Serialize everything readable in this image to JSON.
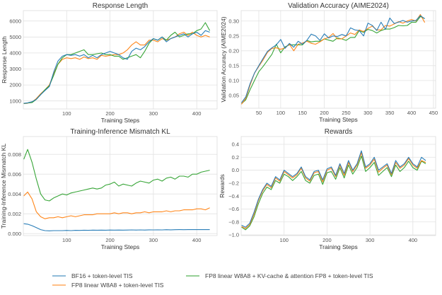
{
  "colors": {
    "bf16": "#1f77b4",
    "fp8": "#ff7f0e",
    "fp8kv": "#2ca02c"
  },
  "legend": [
    {
      "label": "BF16 + token-level TIS",
      "color": "#1f77b4"
    },
    {
      "label": "FP8 linear W8A8 + token-level TIS",
      "color": "#ff7f0e"
    },
    {
      "label": "FP8 linear W8A8 + KV-cache & attention FP8 + token-level TIS",
      "color": "#2ca02c"
    }
  ],
  "chart_data": [
    {
      "type": "line",
      "title": "Response Length",
      "xlabel": "Training Steps",
      "ylabel": "Response Length",
      "xlim": [
        0,
        447
      ],
      "ylim": [
        500,
        6650
      ],
      "grid": true,
      "xticks": [
        100,
        200,
        300,
        400
      ],
      "xticklabels": [
        "100",
        "200",
        "300",
        "400"
      ],
      "yticks": [
        1000,
        2000,
        3000,
        4000,
        5000,
        6000
      ],
      "yticklabels": [
        "1000",
        "2000",
        "3000",
        "4000",
        "5000",
        "6000"
      ],
      "x": [
        1,
        10,
        20,
        30,
        40,
        50,
        60,
        70,
        80,
        90,
        100,
        110,
        120,
        130,
        140,
        150,
        160,
        170,
        180,
        190,
        200,
        210,
        220,
        230,
        240,
        250,
        260,
        270,
        280,
        290,
        300,
        310,
        320,
        330,
        340,
        350,
        360,
        370,
        380,
        390,
        400,
        410,
        420,
        430
      ],
      "series": [
        {
          "name": "FP8 linear W8A8 + token-level TIS",
          "values": [
            830,
            860,
            930,
            1150,
            1450,
            1700,
            2000,
            2700,
            3300,
            3600,
            3700,
            3650,
            3700,
            3600,
            3750,
            3650,
            3700,
            3600,
            3850,
            3800,
            3850,
            3900,
            3900,
            4000,
            4200,
            4500,
            4700,
            4500,
            4500,
            4800,
            4800,
            4700,
            4900,
            4800,
            4900,
            5000,
            5200,
            5300,
            5100,
            5300,
            5100,
            5000,
            5100,
            5000
          ]
        },
        {
          "name": "FP8 linear W8A8 + KV-cache & attention FP8 + token-level TIS",
          "values": [
            840,
            870,
            900,
            1100,
            1400,
            1700,
            1950,
            2600,
            3300,
            3700,
            3900,
            3900,
            4000,
            4100,
            4200,
            3900,
            3900,
            3950,
            4000,
            3900,
            3900,
            3800,
            3800,
            3600,
            3700,
            3800,
            3900,
            3700,
            4100,
            4600,
            4900,
            4800,
            5000,
            4800,
            5100,
            5300,
            5000,
            5100,
            5200,
            5200,
            5400,
            5500,
            5900,
            5400
          ]
        },
        {
          "name": "BF16 + token-level TIS",
          "values": [
            850,
            880,
            950,
            1100,
            1400,
            1650,
            1900,
            2800,
            3500,
            3800,
            3900,
            3850,
            3900,
            3800,
            3900,
            3700,
            3850,
            3700,
            3900,
            4000,
            4100,
            4000,
            3900,
            3700,
            3600,
            4100,
            4300,
            4200,
            4400,
            4700,
            4900,
            4800,
            5000,
            4700,
            4900,
            5000,
            5100,
            5200,
            5000,
            5200,
            5300,
            5100,
            5400,
            5300
          ]
        }
      ]
    },
    {
      "type": "line",
      "title": "Validation Accuracy (AIME2024)",
      "xlabel": "Training Steps",
      "ylabel": "Validation Accuracy (AIME2024)",
      "xlim": [
        9.5,
        455
      ],
      "ylim": [
        0.007,
        0.335
      ],
      "grid": true,
      "xticks": [
        50,
        100,
        150,
        200,
        250,
        300,
        350,
        400,
        450
      ],
      "xticklabels": [
        "50",
        "100",
        "150",
        "200",
        "250",
        "300",
        "350",
        "400",
        "450"
      ],
      "yticks": [
        0.05,
        0.1,
        0.15,
        0.2,
        0.25,
        0.3
      ],
      "yticklabels": [
        "0.05",
        "0.10",
        "0.15",
        "0.20",
        "0.25",
        "0.30"
      ],
      "x": [
        10,
        20,
        30,
        40,
        50,
        60,
        70,
        80,
        90,
        100,
        110,
        120,
        130,
        140,
        150,
        160,
        170,
        180,
        190,
        200,
        210,
        220,
        230,
        240,
        250,
        260,
        270,
        280,
        290,
        300,
        310,
        320,
        330,
        340,
        350,
        360,
        370,
        380,
        390,
        400,
        410,
        420,
        430
      ],
      "series": [
        {
          "name": "FP8 linear W8A8 + KV-cache & attention FP8 + token-level TIS",
          "values": [
            0.022,
            0.035,
            0.07,
            0.1,
            0.13,
            0.148,
            0.168,
            0.188,
            0.222,
            0.193,
            0.213,
            0.22,
            0.22,
            0.22,
            0.22,
            0.235,
            0.23,
            0.232,
            0.232,
            0.24,
            0.236,
            0.232,
            0.243,
            0.24,
            0.235,
            0.245,
            0.245,
            0.268,
            0.262,
            0.272,
            0.268,
            0.26,
            0.268,
            0.273,
            0.273,
            0.278,
            0.285,
            0.284,
            0.285,
            0.296,
            0.296,
            0.315,
            0.308
          ]
        },
        {
          "name": "FP8 linear W8A8 + token-level TIS",
          "values": [
            0.02,
            0.04,
            0.085,
            0.125,
            0.148,
            0.17,
            0.195,
            0.208,
            0.21,
            0.205,
            0.21,
            0.222,
            0.2,
            0.222,
            0.226,
            0.232,
            0.225,
            0.222,
            0.23,
            0.24,
            0.245,
            0.258,
            0.24,
            0.24,
            0.25,
            0.26,
            0.255,
            0.27,
            0.265,
            0.275,
            0.283,
            0.27,
            0.27,
            0.285,
            0.283,
            0.29,
            0.298,
            0.293,
            0.3,
            0.305,
            0.3,
            0.322,
            0.295
          ]
        },
        {
          "name": "BF16 + token-level TIS",
          "values": [
            0.025,
            0.045,
            0.09,
            0.125,
            0.15,
            0.175,
            0.198,
            0.21,
            0.22,
            0.238,
            0.208,
            0.225,
            0.212,
            0.232,
            0.222,
            0.235,
            0.256,
            0.25,
            0.235,
            0.257,
            0.243,
            0.25,
            0.248,
            0.255,
            0.25,
            0.277,
            0.27,
            0.268,
            0.25,
            0.293,
            0.285,
            0.268,
            0.296,
            0.272,
            0.31,
            0.292,
            0.296,
            0.302,
            0.296,
            0.3,
            0.302,
            0.318,
            0.308
          ]
        }
      ]
    },
    {
      "type": "line",
      "title": "Training-Inference Mismatch KL",
      "xlabel": "Training Steps",
      "ylabel": "Training-Inference Mismatch KL",
      "xlim": [
        0,
        447
      ],
      "ylim": [
        -0.0002,
        0.0098
      ],
      "grid": true,
      "xticks": [
        100,
        200,
        300,
        400
      ],
      "xticklabels": [
        "100",
        "200",
        "300",
        "400"
      ],
      "yticks": [
        0,
        0.002,
        0.004,
        0.006,
        0.008
      ],
      "yticklabels": [
        "0.000",
        "0.002",
        "0.004",
        "0.006",
        "0.008"
      ],
      "x": [
        1,
        10,
        20,
        30,
        40,
        50,
        60,
        70,
        80,
        90,
        100,
        110,
        120,
        130,
        140,
        150,
        160,
        170,
        180,
        190,
        200,
        210,
        220,
        230,
        240,
        250,
        260,
        270,
        280,
        290,
        300,
        310,
        320,
        330,
        340,
        350,
        360,
        370,
        380,
        390,
        400,
        410,
        420,
        430
      ],
      "series": [
        {
          "name": "BF16 + token-level TIS",
          "values": [
            0.001,
            0.00095,
            0.0008,
            0.0006,
            0.0004,
            0.0003,
            0.00028,
            0.0003,
            0.0003,
            0.0003,
            0.00032,
            0.0003,
            0.00033,
            0.00032,
            0.00034,
            0.00033,
            0.00035,
            0.00034,
            0.00035,
            0.00034,
            0.00036,
            0.00035,
            0.00036,
            0.00035,
            0.00036,
            0.00037,
            0.00036,
            0.00037,
            0.00036,
            0.00038,
            0.00037,
            0.00038,
            0.00037,
            0.00039,
            0.00038,
            0.00039,
            0.0004,
            0.00039,
            0.0004,
            0.0004,
            0.00041,
            0.0004,
            0.00041,
            0.0004
          ]
        },
        {
          "name": "FP8 linear W8A8 + token-level TIS",
          "values": [
            0.0038,
            0.0042,
            0.0035,
            0.0022,
            0.0017,
            0.0015,
            0.0016,
            0.0016,
            0.0017,
            0.0016,
            0.0017,
            0.0018,
            0.0017,
            0.0018,
            0.0019,
            0.0019,
            0.0019,
            0.002,
            0.002,
            0.002,
            0.002,
            0.0021,
            0.002,
            0.0021,
            0.0021,
            0.002,
            0.0021,
            0.0021,
            0.0022,
            0.0021,
            0.0022,
            0.0022,
            0.0022,
            0.0023,
            0.0022,
            0.0023,
            0.0023,
            0.0024,
            0.0024,
            0.0024,
            0.0025,
            0.0025,
            0.0024,
            0.0026
          ]
        },
        {
          "name": "FP8 linear W8A8 + KV-cache & attention FP8 + token-level TIS",
          "values": [
            0.0075,
            0.0085,
            0.0072,
            0.0055,
            0.004,
            0.0034,
            0.0033,
            0.0036,
            0.0038,
            0.004,
            0.0039,
            0.0041,
            0.0042,
            0.0043,
            0.0044,
            0.0045,
            0.0046,
            0.0045,
            0.0046,
            0.0049,
            0.005,
            0.0052,
            0.0048,
            0.005,
            0.0049,
            0.0048,
            0.0051,
            0.0053,
            0.0052,
            0.0051,
            0.0054,
            0.0055,
            0.0053,
            0.0056,
            0.0057,
            0.0055,
            0.0058,
            0.0058,
            0.0057,
            0.006,
            0.006,
            0.0062,
            0.0063,
            0.0064
          ]
        }
      ]
    },
    {
      "type": "line",
      "title": "Rewards",
      "xlabel": "Training Steps",
      "ylabel": "Rewards",
      "xlim": [
        0,
        453
      ],
      "ylim": [
        -1.01,
        0.52
      ],
      "grid": true,
      "xticks": [
        100,
        200,
        300,
        400
      ],
      "xticklabels": [
        "100",
        "200",
        "300",
        "400"
      ],
      "yticks": [
        -1,
        -0.8,
        -0.6,
        -0.4,
        -0.2,
        0,
        0.2,
        0.4
      ],
      "yticklabels": [
        "−1.0",
        "−0.8",
        "−0.6",
        "−0.4",
        "−0.2",
        "0.0",
        "0.2",
        "0.4"
      ],
      "x": [
        1,
        10,
        20,
        30,
        40,
        50,
        60,
        70,
        80,
        90,
        100,
        110,
        120,
        130,
        140,
        150,
        160,
        170,
        180,
        190,
        200,
        210,
        220,
        230,
        240,
        250,
        260,
        270,
        280,
        290,
        300,
        310,
        320,
        330,
        340,
        350,
        360,
        370,
        380,
        390,
        400,
        410,
        420,
        430
      ],
      "series": [
        {
          "name": "FP8 linear W8A8 + KV-cache & attention FP8 + token-level TIS",
          "values": [
            -0.88,
            -0.92,
            -0.86,
            -0.72,
            -0.52,
            -0.36,
            -0.26,
            -0.3,
            -0.16,
            -0.2,
            -0.06,
            -0.1,
            -0.16,
            -0.1,
            -0.02,
            -0.16,
            -0.2,
            -0.08,
            -0.06,
            -0.22,
            -0.04,
            -0.02,
            -0.14,
            0.04,
            -0.12,
            0.08,
            -0.06,
            0.04,
            0.22,
            -0.02,
            0.04,
            0.12,
            -0.08,
            -0.02,
            0.04,
            -0.1,
            0.08,
            -0.02,
            0.04,
            0.14,
            0.04,
            0.0,
            0.14,
            0.1
          ]
        },
        {
          "name": "FP8 linear W8A8 + token-level TIS",
          "values": [
            -0.87,
            -0.9,
            -0.84,
            -0.68,
            -0.47,
            -0.32,
            -0.22,
            -0.27,
            -0.12,
            -0.17,
            -0.02,
            -0.07,
            -0.12,
            -0.07,
            0.03,
            -0.12,
            -0.17,
            -0.04,
            -0.02,
            -0.18,
            0.0,
            0.03,
            -0.1,
            0.08,
            -0.08,
            0.12,
            -0.02,
            0.08,
            0.27,
            0.03,
            0.08,
            0.17,
            -0.03,
            0.03,
            0.08,
            -0.07,
            0.12,
            0.03,
            0.08,
            0.18,
            0.08,
            0.03,
            0.15,
            0.12
          ]
        },
        {
          "name": "BF16 + token-level TIS",
          "values": [
            -0.85,
            -0.88,
            -0.82,
            -0.65,
            -0.45,
            -0.3,
            -0.2,
            -0.25,
            -0.1,
            -0.15,
            0.0,
            -0.05,
            -0.1,
            -0.05,
            0.05,
            -0.1,
            -0.15,
            -0.02,
            0.0,
            -0.15,
            0.02,
            0.05,
            -0.08,
            0.1,
            -0.05,
            0.15,
            0.0,
            0.1,
            0.3,
            0.05,
            0.1,
            0.2,
            0.0,
            0.05,
            0.1,
            -0.05,
            0.15,
            0.05,
            0.1,
            0.2,
            0.1,
            0.05,
            0.2,
            0.15
          ]
        }
      ]
    }
  ]
}
